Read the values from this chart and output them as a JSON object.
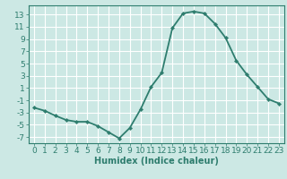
{
  "title": "",
  "xlabel": "Humidex (Indice chaleur)",
  "x": [
    0,
    1,
    2,
    3,
    4,
    5,
    6,
    7,
    8,
    9,
    10,
    11,
    12,
    13,
    14,
    15,
    16,
    17,
    18,
    19,
    20,
    21,
    22,
    23
  ],
  "y": [
    -2.2,
    -2.7,
    -3.5,
    -4.2,
    -4.5,
    -4.5,
    -5.2,
    -6.2,
    -7.2,
    -5.5,
    -2.5,
    1.2,
    3.5,
    10.8,
    13.2,
    13.5,
    13.2,
    11.5,
    9.2,
    5.5,
    3.2,
    1.2,
    -0.8,
    -1.5
  ],
  "line_color": "#2e7d6e",
  "marker": "D",
  "marker_size": 2.2,
  "bg_color": "#cce8e4",
  "grid_color": "#ffffff",
  "ylim": [
    -8,
    14.5
  ],
  "yticks": [
    -7,
    -5,
    -3,
    -1,
    1,
    3,
    5,
    7,
    9,
    11,
    13
  ],
  "xlim": [
    -0.5,
    23.5
  ],
  "xticks": [
    0,
    1,
    2,
    3,
    4,
    5,
    6,
    7,
    8,
    9,
    10,
    11,
    12,
    13,
    14,
    15,
    16,
    17,
    18,
    19,
    20,
    21,
    22,
    23
  ],
  "tick_color": "#2e7d6e",
  "label_color": "#2e7d6e",
  "axis_color": "#2e7d6e",
  "fontsize_label": 7,
  "fontsize_tick": 6.5,
  "linewidth": 1.3
}
